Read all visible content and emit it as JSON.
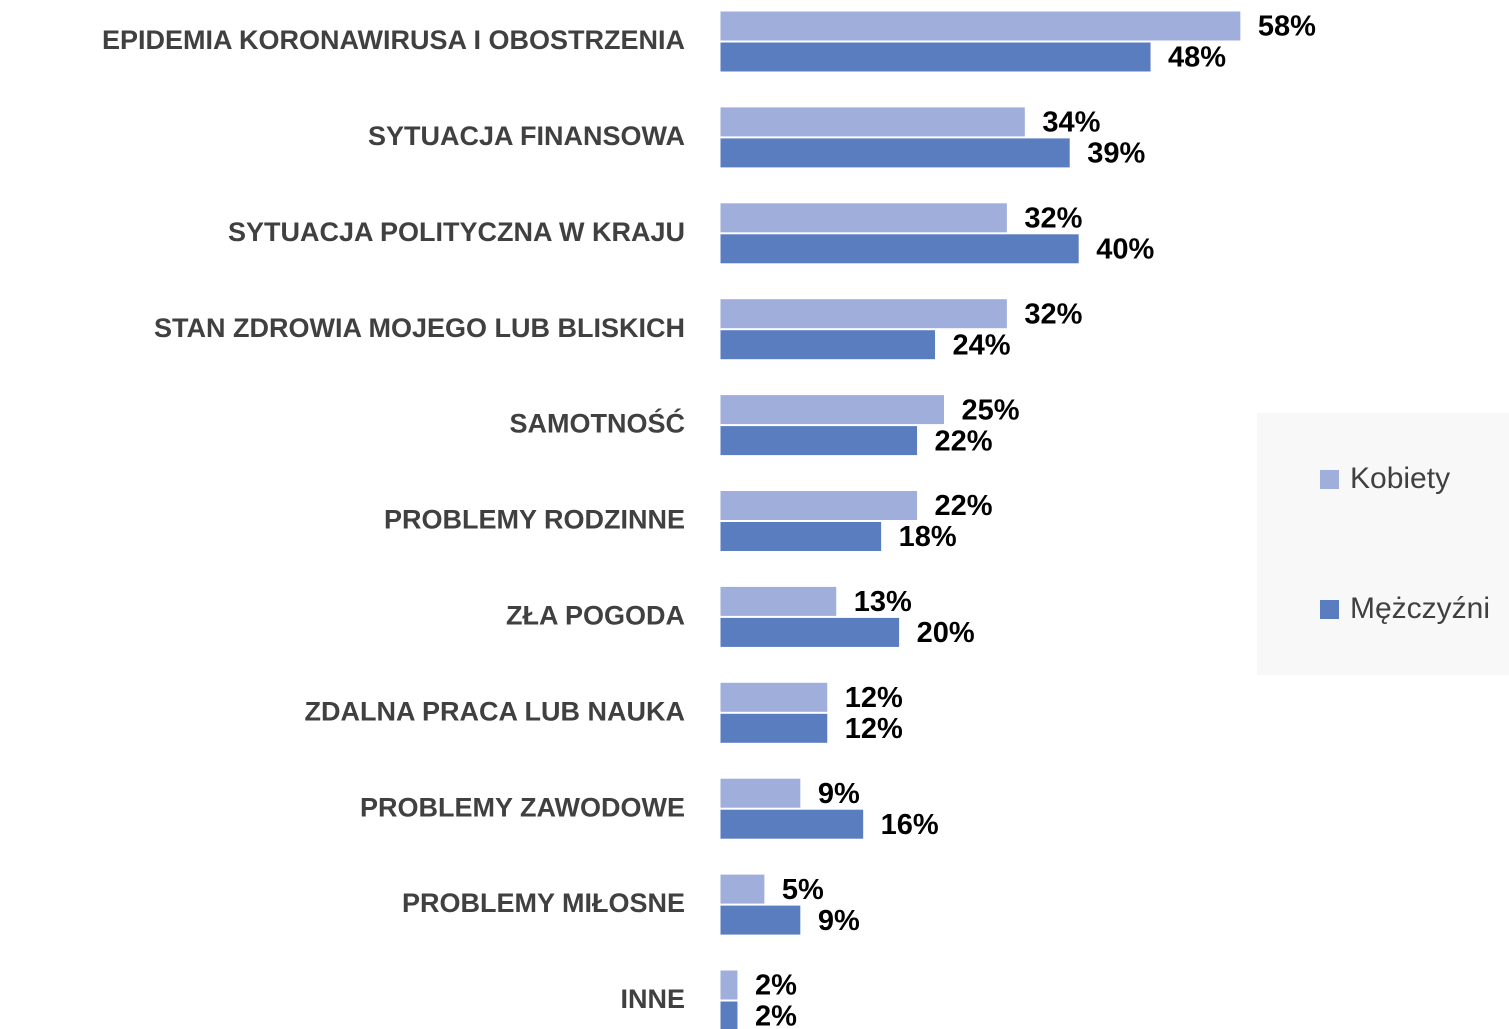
{
  "chart_data": {
    "type": "bar",
    "orientation": "horizontal",
    "categories": [
      "EPIDEMIA KORONAWIRUSA I OBOSTRZENIA",
      "SYTUACJA FINANSOWA",
      "SYTUACJA POLITYCZNA W KRAJU",
      "STAN ZDROWIA MOJEGO LUB BLISKICH",
      "SAMOTNOŚĆ",
      "PROBLEMY RODZINNE",
      "ZŁA POGODA",
      "ZDALNA PRACA LUB NAUKA",
      "PROBLEMY ZAWODOWE",
      "PROBLEMY MIŁOSNE",
      "INNE"
    ],
    "series": [
      {
        "name": "Kobiety",
        "color": "#a0aedb",
        "values": [
          58,
          34,
          32,
          32,
          25,
          22,
          13,
          12,
          9,
          5,
          2
        ],
        "value_labels": [
          "58%",
          "34%",
          "32%",
          "32%",
          "25%",
          "22%",
          "13%",
          "12%",
          "9%",
          "5%",
          "2%"
        ]
      },
      {
        "name": "Mężczyźni",
        "color": "#5a7dbf",
        "values": [
          48,
          39,
          40,
          24,
          22,
          18,
          20,
          12,
          16,
          9,
          2
        ],
        "value_labels": [
          "48%",
          "39%",
          "40%",
          "24%",
          "22%",
          "18%",
          "20%",
          "12%",
          "16%",
          "9%",
          "2%"
        ]
      }
    ],
    "legend": "right",
    "grid": false
  }
}
